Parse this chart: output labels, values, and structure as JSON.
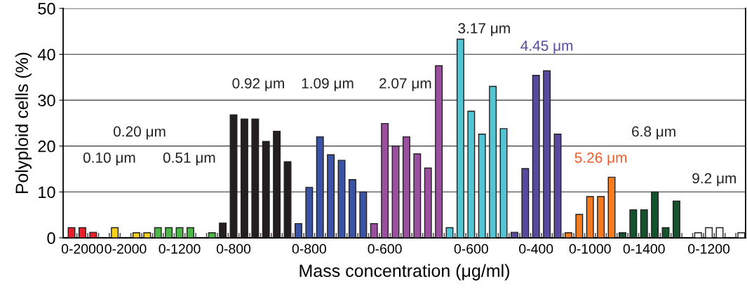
{
  "chart_data": {
    "type": "bar",
    "xlabel": "Mass concentration (μg/ml)",
    "ylabel": "Polyploid cells (%)",
    "categories": [
      null,
      "0-2000",
      null,
      null,
      null,
      "0-2000",
      null,
      null,
      null,
      null,
      "0-1200",
      null,
      null,
      null,
      null,
      "0-800",
      null,
      null,
      null,
      null,
      null,
      null,
      "0-800",
      null,
      null,
      null,
      null,
      null,
      null,
      "0-600",
      null,
      null,
      null,
      null,
      null,
      null,
      null,
      "0-600",
      null,
      null,
      null,
      null,
      null,
      "0-400",
      null,
      null,
      null,
      null,
      "0-1000",
      null,
      null,
      null,
      null,
      "0-1400",
      null,
      null,
      null,
      null,
      null,
      "0-1200",
      null,
      null,
      null
    ],
    "values": [
      2.2,
      2.2,
      1.2,
      null,
      2.2,
      null,
      1.1,
      1.1,
      2.2,
      2.2,
      2.2,
      2.2,
      null,
      1.1,
      3.2,
      26.8,
      25.9,
      25.9,
      21.0,
      23.2,
      16.6,
      3.1,
      11.0,
      22.0,
      18.1,
      16.9,
      12.7,
      10.0,
      3.1,
      24.9,
      20.0,
      22.0,
      18.3,
      15.2,
      37.5,
      2.2,
      43.3,
      27.6,
      22.6,
      33.0,
      23.8,
      1.2,
      15.1,
      35.4,
      36.4,
      22.6,
      1.1,
      5.1,
      9.0,
      9.0,
      13.2,
      1.1,
      6.1,
      6.1,
      10.0,
      2.2,
      8.0,
      null,
      1.1,
      2.2,
      2.2,
      null,
      1.1
    ],
    "colors": [
      "#e8202a",
      "#e8202a",
      "#e8202a",
      "#e8202a",
      "#f5d01c",
      "#f5d01c",
      "#f5d01c",
      "#f5d01c",
      "#4cb848",
      "#4cb848",
      "#4cb848",
      "#4cb848",
      "#4cb848",
      "#4cb848",
      "#231f20",
      "#231f20",
      "#231f20",
      "#231f20",
      "#231f20",
      "#231f20",
      "#231f20",
      "#3a53a4",
      "#3a53a4",
      "#3a53a4",
      "#3a53a4",
      "#3a53a4",
      "#3a53a4",
      "#3a53a4",
      "#9b4f9f",
      "#9b4f9f",
      "#9b4f9f",
      "#9b4f9f",
      "#9b4f9f",
      "#9b4f9f",
      "#9b4f9f",
      "#52c5d5",
      "#52c5d5",
      "#52c5d5",
      "#52c5d5",
      "#52c5d5",
      "#52c5d5",
      "#574a9e",
      "#574a9e",
      "#574a9e",
      "#574a9e",
      "#574a9e",
      "#f47b20",
      "#f47b20",
      "#f47b20",
      "#f47b20",
      "#f47b20",
      "#14532d",
      "#14532d",
      "#14532d",
      "#14532d",
      "#14532d",
      "#14532d",
      "#ffffff",
      "#ffffff",
      "#ffffff",
      "#ffffff",
      "#ffffff",
      "#ffffff"
    ],
    "annotations": [
      "0.10 μm",
      "0.20 μm",
      "0.51 μm",
      "0.92 μm",
      "1.09 μm",
      "2.07 μm",
      "3.17 μm",
      "4.45 μm",
      "5.26 μm",
      "6.8 μm",
      "9.2 μm"
    ],
    "ylim": [
      0,
      50
    ],
    "yticks": [
      0,
      10,
      20,
      30,
      40,
      50
    ],
    "grid": "y",
    "legend": false
  }
}
